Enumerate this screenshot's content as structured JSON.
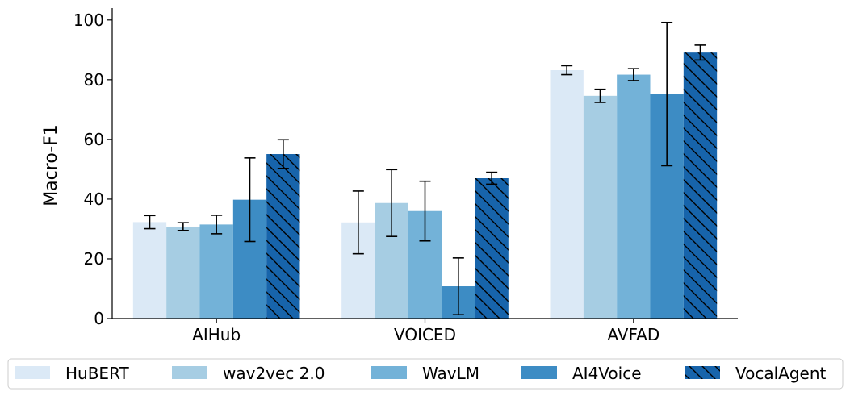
{
  "chart_data": {
    "type": "bar",
    "title": "",
    "xlabel": "",
    "ylabel": "Macro-F1",
    "categories": [
      "AIHub",
      "VOICED",
      "AVFAD"
    ],
    "ylim": [
      0,
      104
    ],
    "yticks": [
      0,
      20,
      40,
      60,
      80,
      100
    ],
    "grid": false,
    "legend": "bottom",
    "series": [
      {
        "name": "HuBERT",
        "color": "#dbe9f6",
        "hatch": false,
        "values": [
          32.3,
          32.2,
          83.2
        ],
        "errors": [
          2.2,
          10.5,
          1.5
        ]
      },
      {
        "name": "wav2vec 2.0",
        "color": "#a6cde3",
        "hatch": false,
        "values": [
          30.8,
          38.7,
          74.6
        ],
        "errors": [
          1.3,
          11.2,
          2.2
        ]
      },
      {
        "name": "WavLM",
        "color": "#73b2d8",
        "hatch": false,
        "values": [
          31.5,
          36.0,
          81.7
        ],
        "errors": [
          3.1,
          10.0,
          2.0
        ]
      },
      {
        "name": "AI4Voice",
        "color": "#3d8cc4",
        "hatch": false,
        "values": [
          39.8,
          10.8,
          75.2
        ],
        "errors": [
          14.0,
          9.5,
          24.0
        ]
      },
      {
        "name": "VocalAgent",
        "color": "#1764ab",
        "hatch": true,
        "values": [
          55.1,
          47.0,
          89.1
        ],
        "errors": [
          4.8,
          2.0,
          2.5
        ]
      }
    ]
  }
}
